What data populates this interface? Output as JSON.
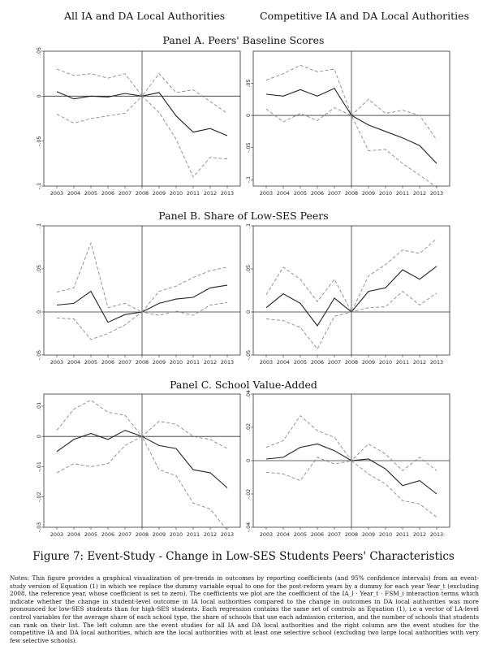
{
  "headers": {
    "left": "All IA and DA Local Authorities",
    "right": "Competitive IA and DA Local Authorities"
  },
  "panels": {
    "a": "Panel A. Peers' Baseline Scores",
    "b": "Panel B. Share of Low-SES Peers",
    "c": "Panel C. School Value-Added"
  },
  "caption": "Figure 7: Event-Study - Change in Low-SES Students Peers' Characteristics",
  "notes": "Notes: This figure provides a graphical visualization of pre-trends in outcomes by reporting coefficients (and 95% confidence intervals) from an event-study version of Equation (1) in which we replace the dummy variable equal to one for the post-reform years by a dummy for each year Year_t (excluding 2008, the reference year, whose coefficient is set to zero). The coefficients we plot are the coefficient of the IA_l · Year_t · FSM_i interaction terms which indicate whether the change in student-level outcome in IA local authorities compared to the change in outcomes in DA local authorities was more pronounced for low-SES students than for high-SES students. Each regression contains the same set of controls as Equation (1), i.e a vector of LA-level control variables for the average share of each school type, the share of schools that use each admission criterion, and the number of schools that students can rank on their list. The left column are the event studies for all IA and DA local authorities and the right column are the event studies for the competitive IA and DA local authorities, which are the local authorities with at least one selective school (excluding two large local authorities with very few selective schools).",
  "chart_data": [
    {
      "type": "line",
      "panel": "A",
      "column": "All IA and DA Local Authorities",
      "x": [
        2003,
        2004,
        2005,
        2006,
        2007,
        2008,
        2009,
        2010,
        2011,
        2012,
        2013
      ],
      "ylim": [
        -0.1,
        0.05
      ],
      "yticks": [
        {
          "v": 0.05,
          "label": ".05"
        },
        {
          "v": 0,
          "label": "0"
        },
        {
          "v": -0.05,
          "label": "-.05"
        },
        {
          "v": -0.1,
          "label": "-.1"
        }
      ],
      "series": [
        {
          "role": "coefficient",
          "values": [
            0.005,
            -0.003,
            0.0,
            -0.001,
            0.003,
            0.0,
            0.004,
            -0.022,
            -0.04,
            -0.036,
            -0.044
          ]
        },
        {
          "role": "ci_upper",
          "values": [
            0.03,
            0.023,
            0.025,
            0.02,
            0.025,
            0.0,
            0.025,
            0.004,
            0.007,
            -0.006,
            -0.019
          ]
        },
        {
          "role": "ci_lower",
          "values": [
            -0.02,
            -0.03,
            -0.025,
            -0.022,
            -0.019,
            0.0,
            -0.018,
            -0.048,
            -0.09,
            -0.068,
            -0.07
          ]
        }
      ]
    },
    {
      "type": "line",
      "panel": "A",
      "column": "Competitive IA and DA Local Authorities",
      "x": [
        2003,
        2004,
        2005,
        2006,
        2007,
        2008,
        2009,
        2010,
        2011,
        2012,
        2013
      ],
      "ylim": [
        -0.11,
        0.1
      ],
      "yticks": [
        {
          "v": 0.05,
          "label": ".05"
        },
        {
          "v": 0,
          "label": "0"
        },
        {
          "v": -0.05,
          "label": "-.05"
        },
        {
          "v": -0.1,
          "label": "-.1"
        }
      ],
      "series": [
        {
          "role": "coefficient",
          "values": [
            0.033,
            0.03,
            0.04,
            0.03,
            0.042,
            0.0,
            -0.015,
            -0.025,
            -0.035,
            -0.047,
            -0.075
          ]
        },
        {
          "role": "ci_upper",
          "values": [
            0.055,
            0.065,
            0.078,
            0.068,
            0.072,
            0.0,
            0.025,
            0.003,
            0.008,
            0.0,
            -0.038
          ]
        },
        {
          "role": "ci_lower",
          "values": [
            0.01,
            -0.01,
            0.003,
            -0.008,
            0.012,
            0.0,
            -0.055,
            -0.053,
            -0.075,
            -0.093,
            -0.112
          ]
        }
      ]
    },
    {
      "type": "line",
      "panel": "B",
      "column": "All IA and DA Local Authorities",
      "x": [
        2003,
        2004,
        2005,
        2006,
        2007,
        2008,
        2009,
        2010,
        2011,
        2012,
        2013
      ],
      "ylim": [
        -0.05,
        0.1
      ],
      "yticks": [
        {
          "v": 0.1,
          "label": ".1"
        },
        {
          "v": 0.05,
          "label": ".05"
        },
        {
          "v": 0,
          "label": "0"
        },
        {
          "v": -0.05,
          "label": "-.05"
        }
      ],
      "series": [
        {
          "role": "coefficient",
          "values": [
            0.008,
            0.01,
            0.024,
            -0.012,
            -0.003,
            0.0,
            0.01,
            0.015,
            0.017,
            0.028,
            0.031
          ]
        },
        {
          "role": "ci_upper",
          "values": [
            0.023,
            0.028,
            0.08,
            0.005,
            0.01,
            0.0,
            0.024,
            0.03,
            0.04,
            0.048,
            0.052
          ]
        },
        {
          "role": "ci_lower",
          "values": [
            -0.007,
            -0.008,
            -0.032,
            -0.025,
            -0.015,
            0.0,
            -0.004,
            0.001,
            -0.004,
            0.008,
            0.011
          ]
        }
      ]
    },
    {
      "type": "line",
      "panel": "B",
      "column": "Competitive IA and DA Local Authorities",
      "x": [
        2003,
        2004,
        2005,
        2006,
        2007,
        2008,
        2009,
        2010,
        2011,
        2012,
        2013
      ],
      "ylim": [
        -0.05,
        0.1
      ],
      "yticks": [
        {
          "v": 0.1,
          "label": ".1"
        },
        {
          "v": 0.05,
          "label": ".05"
        },
        {
          "v": 0,
          "label": "0"
        },
        {
          "v": -0.05,
          "label": "-.05"
        }
      ],
      "series": [
        {
          "role": "coefficient",
          "values": [
            0.005,
            0.021,
            0.01,
            -0.016,
            0.016,
            0.0,
            0.024,
            0.028,
            0.049,
            0.038,
            0.053
          ]
        },
        {
          "role": "ci_upper",
          "values": [
            0.02,
            0.052,
            0.038,
            0.012,
            0.038,
            0.0,
            0.042,
            0.055,
            0.072,
            0.068,
            0.085
          ]
        },
        {
          "role": "ci_lower",
          "values": [
            -0.008,
            -0.01,
            -0.018,
            -0.043,
            -0.005,
            0.0,
            0.005,
            0.006,
            0.024,
            0.008,
            0.022
          ]
        }
      ]
    },
    {
      "type": "line",
      "panel": "C",
      "column": "All IA and DA Local Authorities",
      "x": [
        2003,
        2004,
        2005,
        2006,
        2007,
        2008,
        2009,
        2010,
        2011,
        2012,
        2013
      ],
      "ylim": [
        -0.03,
        0.014
      ],
      "yticks": [
        {
          "v": 0.01,
          "label": ".01"
        },
        {
          "v": 0,
          "label": "0"
        },
        {
          "v": -0.01,
          "label": "-.01"
        },
        {
          "v": -0.02,
          "label": "-.02"
        },
        {
          "v": -0.03,
          "label": "-.03"
        }
      ],
      "series": [
        {
          "role": "coefficient",
          "values": [
            -0.005,
            -0.001,
            0.001,
            -0.001,
            0.002,
            0.0,
            -0.003,
            -0.004,
            -0.011,
            -0.012,
            -0.017
          ]
        },
        {
          "role": "ci_upper",
          "values": [
            0.002,
            0.009,
            0.012,
            0.008,
            0.007,
            0.0,
            0.005,
            0.004,
            0.0,
            -0.001,
            -0.004
          ]
        },
        {
          "role": "ci_lower",
          "values": [
            -0.012,
            -0.009,
            -0.01,
            -0.009,
            -0.003,
            0.0,
            -0.011,
            -0.013,
            -0.022,
            -0.024,
            -0.031
          ]
        }
      ]
    },
    {
      "type": "line",
      "panel": "C",
      "column": "Competitive IA and DA Local Authorities",
      "x": [
        2003,
        2004,
        2005,
        2006,
        2007,
        2008,
        2009,
        2010,
        2011,
        2012,
        2013
      ],
      "ylim": [
        -0.04,
        0.04
      ],
      "yticks": [
        {
          "v": 0.04,
          "label": ".04"
        },
        {
          "v": 0.02,
          "label": ".02"
        },
        {
          "v": 0,
          "label": "0"
        },
        {
          "v": -0.02,
          "label": "-.02"
        },
        {
          "v": -0.04,
          "label": "-.04"
        }
      ],
      "series": [
        {
          "role": "coefficient",
          "values": [
            0.001,
            0.002,
            0.008,
            0.01,
            0.006,
            0.0,
            0.001,
            -0.005,
            -0.015,
            -0.012,
            -0.02
          ]
        },
        {
          "role": "ci_upper",
          "values": [
            0.008,
            0.012,
            0.027,
            0.018,
            0.014,
            0.0,
            0.01,
            0.004,
            -0.006,
            0.002,
            -0.006
          ]
        },
        {
          "role": "ci_lower",
          "values": [
            -0.007,
            -0.008,
            -0.012,
            0.002,
            -0.002,
            0.0,
            -0.008,
            -0.014,
            -0.024,
            -0.026,
            -0.034
          ]
        }
      ]
    }
  ]
}
